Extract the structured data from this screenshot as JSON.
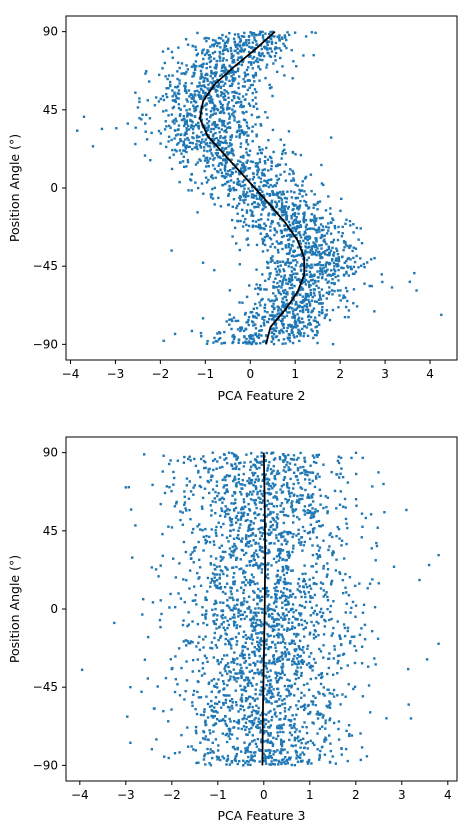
{
  "chart_data": [
    {
      "type": "scatter",
      "xlabel": "PCA Feature 2",
      "ylabel": "Position Angle (°)",
      "xlim": [
        -4.1,
        4.6
      ],
      "ylim": [
        -99,
        99
      ],
      "xticks": [
        -4,
        -3,
        -2,
        -1,
        0,
        1,
        2,
        3,
        4
      ],
      "xtick_labels": [
        "−4",
        "−3",
        "−2",
        "−1",
        "0",
        "1",
        "2",
        "3",
        "4"
      ],
      "yticks": [
        90,
        45,
        0,
        -45,
        -90
      ],
      "ytick_labels": [
        "90",
        "45",
        "0",
        "−45",
        "−90"
      ],
      "grid": false,
      "legend": "none",
      "point_color": "#1f77b4",
      "line_color": "#000000",
      "description_values": {
        "point_count": 2600,
        "relation": "x ≈ 0.15 − 1.15·sin(2·angle)"
      },
      "fit_line": {
        "y": [
          90,
          80,
          70,
          60,
          50,
          40,
          30,
          20,
          10,
          0,
          -10,
          -20,
          -30,
          -40,
          -50,
          -60,
          -70,
          -80,
          -90
        ],
        "x": [
          0.55,
          0.12,
          -0.35,
          -0.78,
          -1.05,
          -1.12,
          -0.95,
          -0.6,
          -0.25,
          0.1,
          0.45,
          0.78,
          1.05,
          1.2,
          1.2,
          1.05,
          0.78,
          0.45,
          0.35
        ]
      },
      "outliers": [
        {
          "x": -3.85,
          "y": 33
        },
        {
          "x": -3.7,
          "y": 41
        },
        {
          "x": -3.3,
          "y": 34
        },
        {
          "x": -3.5,
          "y": 24
        },
        {
          "x": 1.8,
          "y": 29
        },
        {
          "x": 4.25,
          "y": -73
        },
        {
          "x": 3.65,
          "y": -49
        },
        {
          "x": 3.55,
          "y": -54
        },
        {
          "x": -1.05,
          "y": -75
        },
        {
          "x": -1.75,
          "y": -36
        },
        {
          "x": -1.05,
          "y": -43
        },
        {
          "x": 3.7,
          "y": -59
        }
      ]
    },
    {
      "type": "scatter",
      "xlabel": "PCA Feature 3",
      "ylabel": "Position Angle (°)",
      "xlim": [
        -4.3,
        4.2
      ],
      "ylim": [
        -99,
        99
      ],
      "xticks": [
        -4,
        -3,
        -2,
        -1,
        0,
        1,
        2,
        3,
        4
      ],
      "xtick_labels": [
        "−4",
        "−3",
        "−2",
        "−1",
        "0",
        "1",
        "2",
        "3",
        "4"
      ],
      "yticks": [
        90,
        45,
        0,
        -45,
        -90
      ],
      "ytick_labels": [
        "90",
        "45",
        "0",
        "−45",
        "−90"
      ],
      "grid": false,
      "legend": "none",
      "point_color": "#1f77b4",
      "line_color": "#000000",
      "description_values": {
        "point_count": 2600,
        "relation": "x ≈ 0 (no dependence on angle)"
      },
      "fit_line": {
        "y": [
          90,
          60,
          30,
          0,
          -30,
          -60,
          -90
        ],
        "x": [
          0.0,
          0.02,
          0.03,
          0.02,
          0.0,
          -0.02,
          -0.03
        ]
      },
      "outliers": [
        {
          "x": -3.95,
          "y": -35
        },
        {
          "x": -3.25,
          "y": -8
        },
        {
          "x": 3.8,
          "y": -20
        },
        {
          "x": 3.8,
          "y": 31
        },
        {
          "x": -2.9,
          "y": -45
        },
        {
          "x": -2.9,
          "y": -77
        },
        {
          "x": 3.55,
          "y": -29
        },
        {
          "x": 3.15,
          "y": -55
        },
        {
          "x": 3.2,
          "y": -63
        },
        {
          "x": -3.0,
          "y": 70
        },
        {
          "x": 3.1,
          "y": 57
        },
        {
          "x": -2.6,
          "y": 89
        }
      ]
    }
  ]
}
